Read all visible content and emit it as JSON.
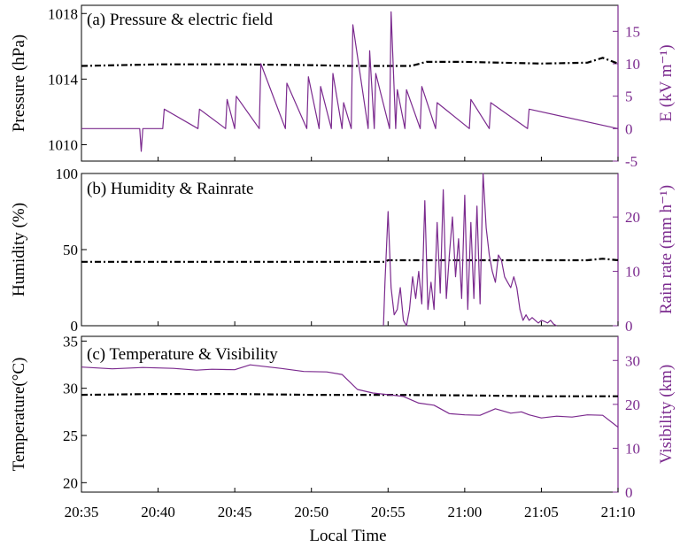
{
  "figure": {
    "xlabel": "Local Time",
    "x_ticks": [
      "20:35",
      "20:40",
      "20:45",
      "20:50",
      "20:55",
      "21:00",
      "21:05",
      "21:10"
    ]
  },
  "colors": {
    "left_series": "#000000",
    "right_series": "#7b2a8e"
  },
  "chart_data": [
    {
      "type": "line",
      "title": "(a) Pressure & electric field",
      "ylabel": "Pressure (hPa)",
      "ylim": [
        1009,
        1018.5
      ],
      "yticks": [
        1010,
        1014,
        1018
      ],
      "y2label": "E (kV m⁻¹)",
      "y2lim": [
        -5,
        19
      ],
      "y2ticks": [
        -5,
        0,
        5,
        10,
        15
      ],
      "series": [
        {
          "axis": "left",
          "style": "dash-dot",
          "color": "#000000",
          "x": [
            0,
            5,
            10,
            15,
            17.5,
            20,
            21.5,
            22.5,
            25,
            30,
            33,
            34,
            35
          ],
          "y": [
            1014.8,
            1014.9,
            1014.9,
            1014.85,
            1014.8,
            1014.8,
            1014.8,
            1015.05,
            1015.05,
            1014.95,
            1015.0,
            1015.3,
            1014.95
          ]
        },
        {
          "axis": "right",
          "style": "solid",
          "color": "#7b2a8e",
          "x": [
            0,
            3.8,
            3.9,
            4.0,
            5.3,
            5.4,
            7.6,
            7.7,
            9.4,
            9.5,
            10.0,
            10.1,
            11.6,
            11.7,
            13.3,
            13.4,
            14.7,
            14.8,
            15.5,
            15.6,
            16.3,
            16.4,
            17.0,
            17.1,
            17.6,
            17.7,
            18.7,
            18.8,
            19.1,
            19.2,
            20.1,
            20.2,
            20.5,
            20.6,
            21.1,
            21.2,
            22.1,
            22.2,
            23.1,
            23.2,
            25.3,
            25.4,
            26.6,
            26.7,
            29.1,
            29.2,
            35
          ],
          "y": [
            0,
            0,
            -3.5,
            0,
            0,
            3,
            0,
            3,
            0,
            4.5,
            0,
            5,
            0,
            10,
            0,
            7,
            0,
            8,
            0,
            6.5,
            0,
            8.5,
            0,
            4,
            0,
            16,
            0,
            12,
            0,
            8.5,
            0,
            18,
            0,
            6,
            0,
            6,
            0,
            6.5,
            0,
            4,
            0,
            4.5,
            0,
            4,
            0,
            3,
            0
          ]
        }
      ]
    },
    {
      "type": "line",
      "title": "(b) Humidity & Rainrate",
      "ylabel": "Humidity (%)",
      "ylim": [
        0,
        100
      ],
      "yticks": [
        0,
        50,
        100
      ],
      "y2label": "Rain rate (mm h⁻¹)",
      "y2lim": [
        0,
        28
      ],
      "y2ticks": [
        0,
        10,
        20
      ],
      "series": [
        {
          "axis": "left",
          "style": "dash-dot",
          "color": "#000000",
          "x": [
            0,
            5,
            10,
            15,
            18,
            19.8,
            20,
            25,
            30,
            33,
            34,
            35
          ],
          "y": [
            42,
            42,
            42,
            42,
            42,
            42,
            43,
            43,
            43,
            43,
            44,
            43
          ]
        },
        {
          "axis": "right",
          "style": "solid",
          "color": "#7b2a8e",
          "x": [
            19.7,
            19.8,
            20.0,
            20.2,
            20.4,
            20.6,
            20.8,
            21.0,
            21.2,
            21.4,
            21.6,
            21.8,
            22.0,
            22.2,
            22.4,
            22.6,
            22.8,
            23.0,
            23.2,
            23.4,
            23.6,
            23.8,
            24.0,
            24.2,
            24.4,
            24.6,
            24.8,
            25.0,
            25.2,
            25.4,
            25.6,
            25.8,
            26.0,
            26.2,
            26.4,
            26.6,
            26.8,
            27.0,
            27.2,
            27.4,
            27.6,
            27.8,
            28.0,
            28.2,
            28.4,
            28.6,
            28.8,
            29.0,
            29.2,
            29.4,
            29.6,
            29.8,
            30.0,
            30.2,
            30.4,
            30.6,
            30.8,
            31.0
          ],
          "y": [
            0,
            8,
            21,
            7,
            2,
            3,
            7,
            1,
            0,
            3,
            9,
            5,
            10,
            4,
            23,
            3,
            8,
            3,
            19,
            6,
            25,
            5,
            13,
            20,
            9,
            16,
            5,
            24,
            3,
            19,
            5,
            22,
            4,
            28,
            18,
            13,
            10,
            8,
            13,
            12,
            9,
            8,
            7,
            9,
            7,
            3,
            1,
            2,
            1,
            1.5,
            1,
            0.5,
            1,
            0.8,
            0.5,
            1,
            0.3,
            0
          ]
        }
      ]
    },
    {
      "type": "line",
      "title": "(c) Temperature & Visibility",
      "ylabel": "Temperature(°C)",
      "ylim": [
        19,
        35.5
      ],
      "yticks": [
        20,
        25,
        30,
        35
      ],
      "y2label": "Visibility (km)",
      "y2lim": [
        0,
        35.5
      ],
      "y2ticks": [
        0,
        10,
        20,
        30
      ],
      "series": [
        {
          "axis": "left",
          "style": "dash-dot",
          "color": "#000000",
          "x": [
            0,
            5,
            10,
            15,
            17.5,
            20,
            25,
            30,
            35
          ],
          "y": [
            29.3,
            29.4,
            29.4,
            29.3,
            29.3,
            29.3,
            29.25,
            29.15,
            29.15
          ]
        },
        {
          "axis": "right",
          "style": "solid",
          "color": "#7b2a8e",
          "x": [
            0,
            2,
            4,
            6,
            7.5,
            8.5,
            10,
            11,
            12,
            13,
            14.5,
            16,
            17,
            18,
            19,
            20,
            21,
            22,
            23,
            24,
            25,
            26,
            27,
            28,
            28.7,
            29.2,
            30,
            31,
            32,
            33,
            34,
            35
          ],
          "y": [
            28.5,
            28.1,
            28.4,
            28.2,
            27.8,
            28.0,
            27.9,
            29.0,
            28.6,
            28.2,
            27.5,
            27.4,
            26.8,
            23.4,
            22.6,
            22.2,
            21.8,
            20.3,
            19.8,
            17.9,
            17.6,
            17.5,
            19.0,
            18.0,
            18.3,
            17.6,
            16.9,
            17.3,
            17.1,
            17.6,
            17.5,
            14.8
          ]
        }
      ]
    }
  ]
}
